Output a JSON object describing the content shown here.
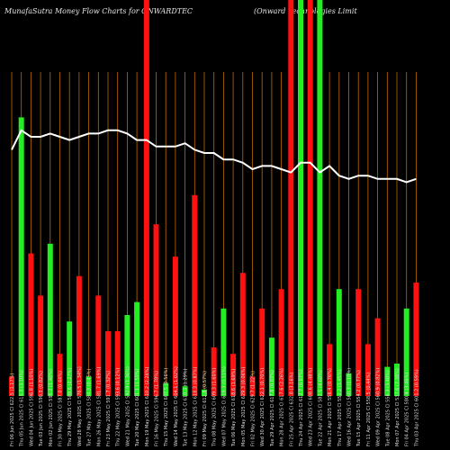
{
  "title": "MunafaSutra Money Flow Charts for ONWARDTEC",
  "subtitle": "(Onward Technologies Limit",
  "chart_data": {
    "type": "bar",
    "ylim": [
      0,
      100
    ],
    "line_ylim": [
      0,
      100
    ],
    "colors": {
      "up": "#22ee22",
      "down": "#ff1111",
      "grid": "#c06a00",
      "line": "#ffffff",
      "text": "#dddddd",
      "background": "#000000"
    },
    "categories": [
      "Fri 06 Jun 2025 Cl 622.5 (1.17%)",
      "Thu 05 Jun 2025 Cl 615.3 (3.10%)",
      "Wed 04 Jun 2025 Cl 596.8 (1.10%)",
      "Tue 03 Jun 2025 Cl 590.3 (0.82%)",
      "Mon 02 Jun 2025 Cl 595.2 (1.40%)",
      "Fri 30 May 2025 Cl 587.0 (0.44%)",
      "Thu 29 May 2025 Cl 589.6 (2.27%)",
      "Wed 28 May 2025 Cl 576.5 (1.34%)",
      "Tue 27 May 2025 Cl 584.3 (0.45%)",
      "Mon 26 May 2025 Cl 581.7 (1.69%)",
      "Fri 23 May 2025 Cl 591.7 (0.32%)",
      "Thu 22 May 2025 Cl 593.6 (0.12%)",
      "Wed 21 May 2025 Cl 592.9 (1.36%)",
      "Tue 20 May 2025 Cl 601.1 (1.50%)",
      "Mon 19 May 2025 Cl 610.2 (2.26%)",
      "Fri 16 May 2025 Cl 596.7 (1.78%)",
      "Thu 15 May 2025 Cl 607.5 (0.56%)",
      "Wed 14 May 2025 Cl 604.1 (1.02%)",
      "Tue 13 May 2025 Cl 610.3 (1.29%)",
      "Mon 12 May 2025 Cl 618.3 (0.87%)",
      "Fri 09 May 2025 Cl 612.8 (0.57%)",
      "Thu 08 May 2025 Cl 609.3 (1.60%)",
      "Wed 07 May 2025 Cl 619.3 (0.11%)",
      "Tue 06 May 2025 Cl 618.6 (1.69%)",
      "Mon 05 May 2025 Cl 629.3 (0.06%)",
      "Fri 02 May 2025 Cl 629.7 (1.22%)",
      "Wed 30 Apr 2025 Cl 622.1 (0.70%)",
      "Tue 29 Apr 2025 Cl 617.8 (0.03%)",
      "Mon 28 Apr 2025 Cl 617.6 (2.26%)",
      "Fri 25 Apr 2025 Cl 632.0 (3.16%)",
      "Thu 24 Apr 2025 Cl 612.7 (0.67%)",
      "Wed 23 Apr 2025 Cl 608.6 (4.48%)",
      "Tue 22 Apr 2025 Cl 582.5 (4.68%)",
      "Mon 21 Apr 2025 Cl 556.4 (0.76%)",
      "Thu 17 Apr 2025 Cl 552.2 (1.45%)",
      "Wed 16 Apr 2025 Cl 560.3 (1.10%)",
      "Tue 15 Apr 2025 Cl 554.2 (0.77%)",
      "Fri 11 Apr 2025 Cl 558.5 (0.44%)",
      "Wed 09 Apr 2025 Cl 560.9 (0.82%)",
      "Tue 08 Apr 2025 Cl 556.3 (3.48%)",
      "Mon 07 Apr 2025 Cl 537.6 (7.38%)",
      "Fri 04 Apr 2025 Cl 580.4 (3.46%)",
      "Thu 03 Apr 2025 Cl 601.2 (0.59%)"
    ],
    "directions": [
      "down",
      "up",
      "down",
      "down",
      "up",
      "down",
      "up",
      "down",
      "up",
      "down",
      "down",
      "down",
      "up",
      "up",
      "down",
      "down",
      "up",
      "down",
      "up",
      "down",
      "up",
      "down",
      "up",
      "down",
      "down",
      "down",
      "down",
      "up",
      "down",
      "down",
      "up",
      "down",
      "up",
      "down",
      "up",
      "up",
      "down",
      "down",
      "down",
      "up",
      "up",
      "up",
      "down"
    ],
    "values": [
      6,
      86,
      44,
      31,
      47,
      13,
      23,
      37,
      6,
      31,
      20,
      20,
      25,
      29,
      100,
      53,
      4,
      43,
      3,
      62,
      2,
      15,
      27,
      13,
      38,
      6,
      27,
      18,
      33,
      100,
      100,
      100,
      100,
      16,
      33,
      7,
      33,
      16,
      24,
      9,
      10,
      27,
      35
    ],
    "line": [
      76,
      82,
      80,
      80,
      81,
      80,
      79,
      80,
      81,
      81,
      82,
      82,
      81,
      79,
      79,
      77,
      77,
      77,
      78,
      76,
      75,
      75,
      73,
      73,
      72,
      70,
      71,
      71,
      70,
      69,
      72,
      72,
      69,
      71,
      68,
      67,
      68,
      68,
      67,
      67,
      67,
      66,
      67
    ]
  }
}
